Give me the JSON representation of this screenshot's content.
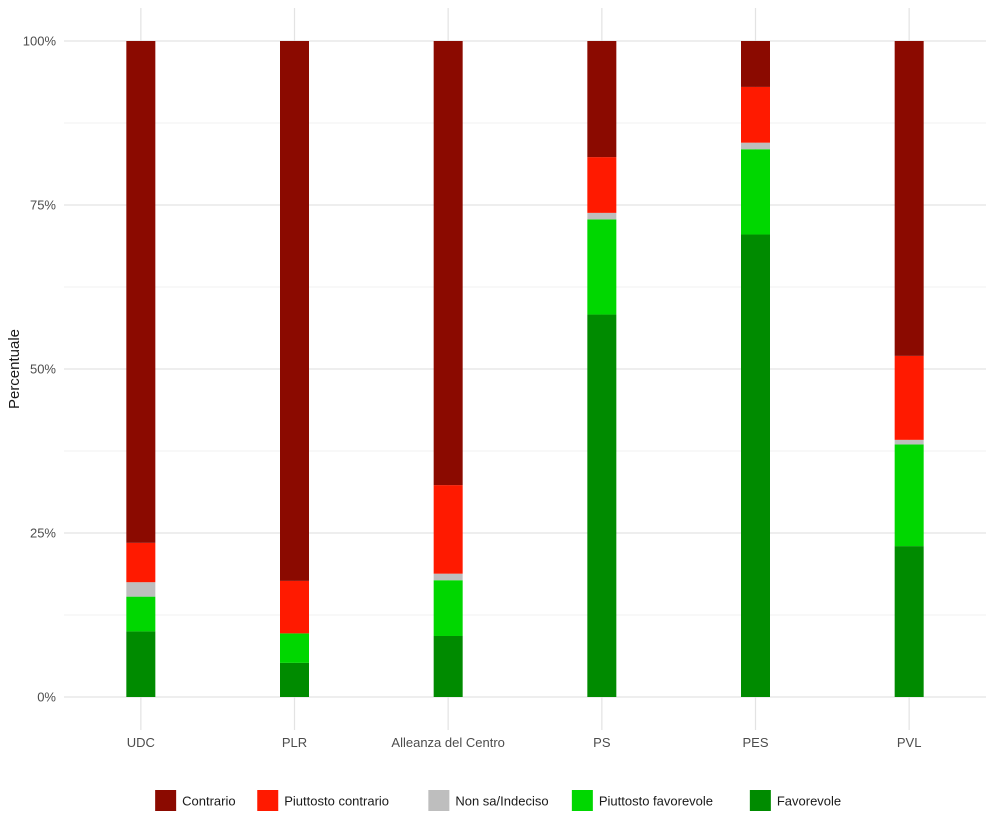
{
  "chart_data": {
    "type": "bar",
    "stacked": true,
    "title": "",
    "xlabel": "",
    "ylabel": "Percentuale",
    "ylim": [
      0,
      100
    ],
    "y_ticks": [
      "0%",
      "25%",
      "50%",
      "75%",
      "100%"
    ],
    "y_tick_values": [
      0,
      25,
      50,
      75,
      100
    ],
    "grid": true,
    "legend_position": "bottom",
    "categories": [
      "UDC",
      "PLR",
      "Alleanza del Centro",
      "PS",
      "PES",
      "PVL"
    ],
    "series": [
      {
        "name": "Favorevole",
        "color": "#008B00",
        "values": [
          10.0,
          5.2,
          9.3,
          58.3,
          70.5,
          23.0
        ]
      },
      {
        "name": "Piuttosto favorevole",
        "color": "#00D700",
        "values": [
          5.3,
          4.5,
          8.5,
          14.5,
          13.0,
          15.5
        ]
      },
      {
        "name": "Non sa/Indeciso",
        "color": "#BEBEBE",
        "values": [
          2.2,
          0.0,
          1.0,
          1.0,
          1.0,
          0.7
        ]
      },
      {
        "name": "Piuttosto contrario",
        "color": "#FF1A00",
        "values": [
          6.0,
          8.0,
          13.5,
          8.5,
          8.5,
          12.8
        ]
      },
      {
        "name": "Contrario",
        "color": "#8B0A00",
        "values": [
          76.5,
          82.3,
          67.7,
          17.7,
          7.0,
          48.0
        ]
      }
    ],
    "legend_order": [
      "Contrario",
      "Piuttosto contrario",
      "Non sa/Indeciso",
      "Piuttosto favorevole",
      "Favorevole"
    ]
  }
}
